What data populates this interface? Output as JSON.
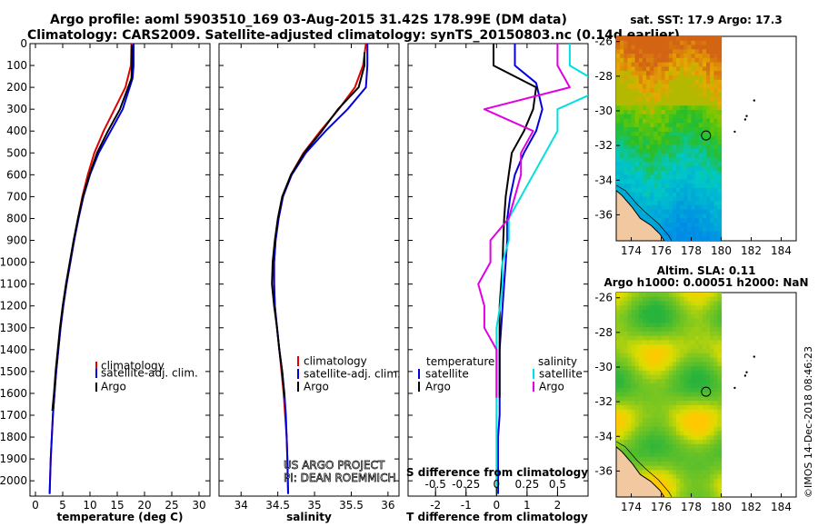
{
  "header": {
    "line1": "Argo profile: aoml 5903510_169 03-Aug-2015 31.42S 178.99E (DM data)",
    "line2": "Climatology: CARS2009. Satellite-adjusted climatology: synTS_20150803.nc (0.14d earlier)"
  },
  "colors": {
    "climatology": "#e00000",
    "satellite": "#0000e0",
    "argo": "#000000",
    "sal_satellite": "#00e0e0",
    "sal_argo": "#e000e0"
  },
  "chart_data": [
    {
      "type": "line",
      "xlabel": "temperature (deg C)",
      "ylabel": "",
      "xlim": [
        -1,
        32
      ],
      "ylim": [
        2070,
        0
      ],
      "xticks": [
        0,
        5,
        10,
        15,
        20,
        25,
        30
      ],
      "yticks": [
        0,
        100,
        200,
        300,
        400,
        500,
        600,
        700,
        800,
        900,
        1000,
        1100,
        1200,
        1300,
        1400,
        1500,
        1600,
        1700,
        1800,
        1900,
        2000
      ],
      "grid": false,
      "legend": [
        "climatology",
        "satellite-adj. clim.",
        "Argo"
      ],
      "legend_position": "bottom-center",
      "series": [
        {
          "name": "climatology",
          "color_key": "climatology",
          "x": [
            17.6,
            17.5,
            16.5,
            14.5,
            12.5,
            10.8,
            9.6,
            8.6,
            7.8,
            7.1,
            6.4,
            5.7,
            5.1,
            4.6,
            4.2,
            3.8,
            3.5,
            3.2,
            3.0,
            2.8,
            2.6
          ],
          "y": [
            0,
            100,
            200,
            300,
            400,
            500,
            600,
            700,
            800,
            900,
            1000,
            1100,
            1200,
            1300,
            1400,
            1500,
            1600,
            1700,
            1800,
            1900,
            2060
          ]
        },
        {
          "name": "satellite-adj. clim.",
          "color_key": "satellite",
          "x": [
            18.0,
            18.0,
            17.8,
            16.0,
            13.8,
            11.6,
            10.0,
            8.8,
            7.9,
            7.1,
            6.4,
            5.7,
            5.1,
            4.6,
            4.2,
            3.8,
            3.5,
            3.2,
            3.0,
            2.8,
            2.6
          ],
          "y": [
            0,
            100,
            160,
            300,
            400,
            500,
            600,
            700,
            800,
            900,
            1000,
            1100,
            1200,
            1300,
            1400,
            1500,
            1600,
            1700,
            1800,
            1900,
            2060
          ]
        },
        {
          "name": "Argo",
          "color_key": "argo",
          "x": [
            17.7,
            17.7,
            17.6,
            15.5,
            13.3,
            11.3,
            9.9,
            8.7,
            7.8,
            7.0,
            6.3,
            5.6,
            5.0,
            4.5,
            4.1,
            3.7,
            3.4,
            3.1
          ],
          "y": [
            5,
            100,
            160,
            300,
            400,
            500,
            600,
            700,
            800,
            900,
            1000,
            1100,
            1200,
            1300,
            1400,
            1500,
            1600,
            1680
          ]
        }
      ]
    },
    {
      "type": "line",
      "xlabel": "salinity",
      "ylabel": "",
      "xlim": [
        33.7,
        36.15
      ],
      "ylim": [
        2070,
        0
      ],
      "xticks": [
        34,
        34.5,
        35,
        35.5,
        36
      ],
      "grid": false,
      "legend": [
        "climatology",
        "satellite-adj. clim.",
        "Argo"
      ],
      "legend_position": "bottom-right",
      "annotation": [
        "US ARGO PROJECT",
        "PI: DEAN ROEMMICH"
      ],
      "series": [
        {
          "name": "climatology",
          "color_key": "climatology",
          "x": [
            35.7,
            35.66,
            35.55,
            35.33,
            35.08,
            34.85,
            34.68,
            34.57,
            34.51,
            34.47,
            34.45,
            34.45,
            34.46,
            34.49,
            34.52,
            34.55,
            34.58,
            34.6,
            34.62,
            34.63,
            34.64
          ],
          "y": [
            0,
            100,
            200,
            300,
            400,
            500,
            600,
            700,
            800,
            900,
            1000,
            1100,
            1200,
            1300,
            1400,
            1500,
            1600,
            1700,
            1800,
            1900,
            2060
          ]
        },
        {
          "name": "satellite-adj. clim.",
          "color_key": "satellite",
          "x": [
            35.72,
            35.72,
            35.7,
            35.45,
            35.15,
            34.88,
            34.69,
            34.57,
            34.51,
            34.47,
            34.45,
            34.45,
            34.46,
            34.49,
            34.52,
            34.56,
            34.59,
            34.61,
            34.62,
            34.63,
            34.64
          ],
          "y": [
            0,
            100,
            200,
            300,
            400,
            500,
            600,
            700,
            800,
            900,
            1000,
            1100,
            1200,
            1300,
            1400,
            1500,
            1600,
            1700,
            1800,
            1900,
            2060
          ]
        },
        {
          "name": "Argo",
          "color_key": "argo",
          "x": [
            35.68,
            35.68,
            35.6,
            35.32,
            35.1,
            34.86,
            34.68,
            34.56,
            34.5,
            34.46,
            34.43,
            34.42,
            34.45,
            34.49,
            34.52,
            34.56,
            34.59
          ],
          "y": [
            40,
            100,
            200,
            300,
            400,
            500,
            600,
            700,
            800,
            900,
            1000,
            1100,
            1200,
            1300,
            1400,
            1500,
            1620
          ]
        }
      ]
    },
    {
      "type": "line",
      "xlabel": "T difference from climatology",
      "xlabel2": "S difference from climatology",
      "ylabel": "",
      "xlim": [
        -2.9,
        3.0
      ],
      "ylim": [
        2070,
        0
      ],
      "xticks": [
        -2,
        -1,
        0,
        1,
        2
      ],
      "xticks2": [
        -0.5,
        -0.25,
        0,
        0.25,
        0.5
      ],
      "xticklabels2": [
        "-0.5",
        "-0.25",
        "0",
        "0.25",
        "0.5"
      ],
      "grid": false,
      "legend_left_title": "temperature",
      "legend_right_title": "salinity",
      "legend_left": [
        "satellite",
        "Argo"
      ],
      "legend_right": [
        "satellite",
        "Argo"
      ],
      "series": [
        {
          "name": "temperature satellite",
          "color_key": "satellite",
          "x": [
            0.6,
            0.6,
            1.3,
            1.5,
            1.3,
            0.9,
            0.6,
            0.45,
            0.35,
            0.35,
            0.3,
            0.25,
            0.2,
            0.15,
            0.1,
            0.1,
            0.1,
            0.1,
            0.05,
            0.05,
            0.05
          ],
          "y": [
            0,
            100,
            180,
            300,
            400,
            500,
            600,
            700,
            800,
            900,
            1000,
            1100,
            1200,
            1300,
            1400,
            1500,
            1600,
            1700,
            1800,
            1900,
            2060
          ]
        },
        {
          "name": "temperature Argo",
          "color_key": "argo",
          "x": [
            -0.1,
            -0.1,
            1.3,
            1.2,
            0.9,
            0.5,
            0.4,
            0.3,
            0.25,
            0.22,
            0.2,
            0.15,
            0.1,
            0.1,
            0.1,
            0.1,
            0.1
          ],
          "y": [
            0,
            100,
            200,
            300,
            400,
            500,
            600,
            700,
            800,
            900,
            1000,
            1100,
            1200,
            1300,
            1400,
            1500,
            1620
          ]
        },
        {
          "name": "salinity satellite",
          "color_key": "sal_satellite",
          "x": [
            0.6,
            0.6,
            0.9,
            0.5,
            0.5,
            0.4,
            0.3,
            0.2,
            0.1,
            0.1,
            0.05,
            0.05,
            0.03,
            0.0,
            0.0,
            0.0,
            0.0,
            0.0,
            0.0,
            0.0,
            0.0
          ],
          "y": [
            0,
            100,
            200,
            300,
            400,
            500,
            600,
            700,
            800,
            900,
            1000,
            1100,
            1200,
            1300,
            1400,
            1500,
            1600,
            1700,
            1800,
            1900,
            2060
          ]
        },
        {
          "name": "salinity Argo",
          "color_key": "sal_argo",
          "x": [
            0.5,
            0.5,
            0.6,
            -0.1,
            0.3,
            0.2,
            0.2,
            0.15,
            0.1,
            -0.05,
            -0.05,
            -0.15,
            -0.1,
            -0.1,
            0.0,
            0.0,
            0.0
          ],
          "y": [
            0,
            100,
            200,
            300,
            400,
            500,
            600,
            700,
            800,
            900,
            1000,
            1100,
            1200,
            1300,
            1400,
            1500,
            1620
          ]
        }
      ]
    },
    {
      "type": "heatmap",
      "title": "sat. SST: 17.9 Argo: 17.3",
      "xlim": [
        173,
        185
      ],
      "ylim": [
        -37.5,
        -25.7
      ],
      "xticks": [
        174,
        176,
        178,
        180,
        182,
        184
      ],
      "yticks": [
        -26,
        -28,
        -30,
        -32,
        -34,
        -36
      ],
      "data_extent_lon": [
        173,
        180
      ],
      "profile_position": [
        178.99,
        -31.42
      ]
    },
    {
      "type": "heatmap",
      "title_line1": "Altim. SLA: 0.11",
      "title_line2": "Argo h1000: 0.00051 h2000: NaN",
      "xlim": [
        173,
        185
      ],
      "ylim": [
        -37.5,
        -25.7
      ],
      "xticks": [
        174,
        176,
        178,
        180,
        182,
        184
      ],
      "yticks": [
        -26,
        -28,
        -30,
        -32,
        -34,
        -36
      ],
      "data_extent_lon": [
        173,
        180
      ],
      "profile_position": [
        178.99,
        -31.42
      ]
    }
  ],
  "watermark": "©IMOS 14-Dec-2018 08:46:23"
}
